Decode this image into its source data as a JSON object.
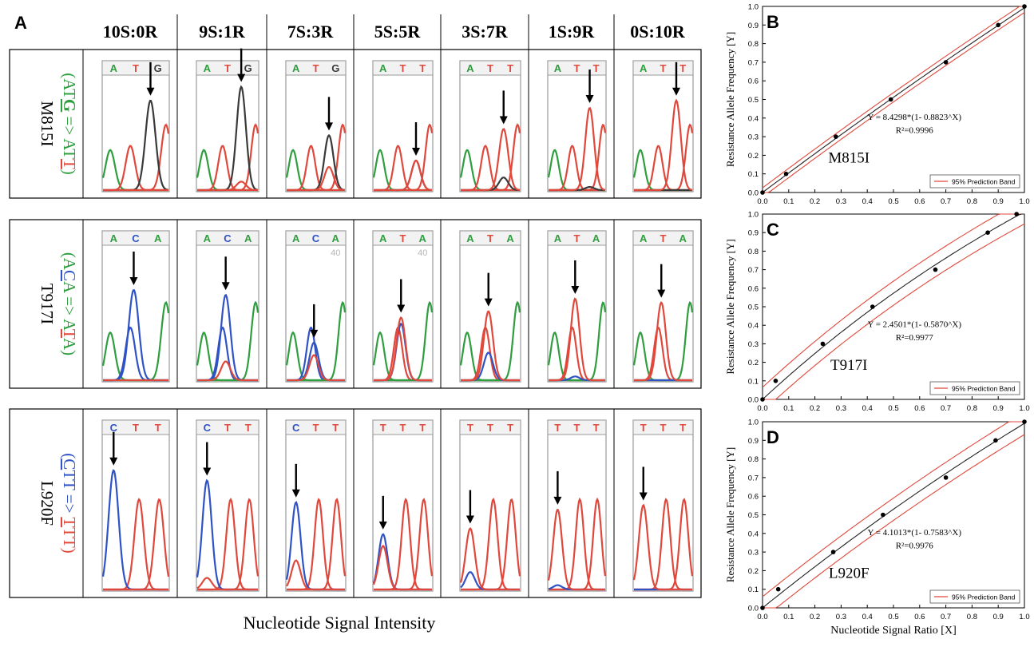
{
  "panel_letters": {
    "A": "A",
    "B": "B",
    "C": "C",
    "D": "D"
  },
  "ratio_headers": [
    "10S:0R",
    "9S:1R",
    "7S:3R",
    "5S:5R",
    "3S:7R",
    "1S:9R",
    "0S:10R"
  ],
  "bottom_label": "Nucleotide Signal Intensity",
  "base_colors": {
    "A": "#2e9e3e",
    "C": "#2f52c4",
    "G": "#3a3a3a",
    "T": "#e0483c"
  },
  "mutations": [
    {
      "name": "M815I",
      "change": {
        "parts": [
          {
            "text": "(AT",
            "color": "#2e9e3e"
          },
          {
            "text": "G",
            "color": "#2e9e3e",
            "bold": true,
            "underline": true
          },
          {
            "text": " => AT",
            "color": "#2e9e3e"
          },
          {
            "text": "T",
            "color": "#e0483c",
            "underline": true
          },
          {
            "text": ")",
            "color": "#2e9e3e"
          }
        ]
      },
      "sequences": [
        [
          "A",
          "T",
          "G"
        ],
        [
          "A",
          "T",
          "G"
        ],
        [
          "A",
          "T",
          "G"
        ],
        [
          "A",
          "T",
          "T"
        ],
        [
          "A",
          "T",
          "T"
        ],
        [
          "A",
          "T",
          "T"
        ],
        [
          "A",
          "T",
          "T"
        ]
      ],
      "position_labels": [
        "",
        "",
        "",
        "",
        "",
        "",
        ""
      ],
      "variant_peaks": {
        "ref_base": "G",
        "alt_base": "T",
        "ref": [
          0.85,
          0.98,
          0.52,
          0.28,
          0.12,
          0.03,
          0.0
        ],
        "alt": [
          0.0,
          0.08,
          0.22,
          0.28,
          0.58,
          0.78,
          0.85
        ]
      }
    },
    {
      "name": "T917I",
      "change": {
        "parts": [
          {
            "text": "(A",
            "color": "#2e9e3e"
          },
          {
            "text": "C",
            "color": "#2f52c4",
            "underline": true
          },
          {
            "text": "A => A",
            "color": "#2e9e3e"
          },
          {
            "text": "T",
            "color": "#e0483c",
            "underline": true
          },
          {
            "text": "A)",
            "color": "#2e9e3e"
          }
        ]
      },
      "sequences": [
        [
          "A",
          "C",
          "A"
        ],
        [
          "A",
          "C",
          "A"
        ],
        [
          "A",
          "C",
          "A"
        ],
        [
          "A",
          "T",
          "A"
        ],
        [
          "A",
          "T",
          "A"
        ],
        [
          "A",
          "T",
          "A"
        ],
        [
          "A",
          "T",
          "A"
        ]
      ],
      "position_labels": [
        "",
        "",
        "40",
        "40",
        "",
        "",
        ""
      ],
      "variant_peaks": {
        "ref_base": "C",
        "alt_base": "T",
        "ref": [
          0.72,
          0.68,
          0.3,
          0.45,
          0.22,
          0.03,
          0.0
        ],
        "alt": [
          0.0,
          0.15,
          0.2,
          0.5,
          0.55,
          0.65,
          0.62
        ]
      }
    },
    {
      "name": "L920F",
      "change": {
        "parts": [
          {
            "text": "(",
            "color": "#2f52c4"
          },
          {
            "text": "C",
            "color": "#2f52c4",
            "underline": true
          },
          {
            "text": "TT => ",
            "color": "#2f52c4"
          },
          {
            "text": "T",
            "color": "#e0483c",
            "underline": true
          },
          {
            "text": "TT)",
            "color": "#e0483c"
          }
        ]
      },
      "sequences": [
        [
          "C",
          "T",
          "T"
        ],
        [
          "C",
          "T",
          "T"
        ],
        [
          "C",
          "T",
          "T"
        ],
        [
          "T",
          "T",
          "T"
        ],
        [
          "T",
          "T",
          "T"
        ],
        [
          "T",
          "T",
          "T"
        ],
        [
          "T",
          "T",
          "T"
        ]
      ],
      "position_labels": [
        "",
        "",
        "",
        "",
        "",
        "",
        ""
      ],
      "variant_peaks": {
        "ref_base": "C",
        "alt_base": "T",
        "ref": [
          0.82,
          0.75,
          0.6,
          0.38,
          0.12,
          0.03,
          0.0
        ],
        "alt": [
          0.0,
          0.08,
          0.2,
          0.3,
          0.42,
          0.55,
          0.58
        ]
      }
    }
  ],
  "chart_data": [
    {
      "panel": "B",
      "type": "scatter",
      "annotation": "M815I",
      "equation": "Y = 8.4298*(1- 0.8823^X)",
      "r2": "R²=0.9996",
      "legend": "95% Prediction Band",
      "ylabel": "Resistance Allele Frequency [Y]",
      "xlabel": "",
      "xlim": [
        0,
        1
      ],
      "ylim": [
        0,
        1
      ],
      "xticks": [
        "0.0",
        "0.1",
        "0.2",
        "0.3",
        "0.4",
        "0.5",
        "0.6",
        "0.7",
        "0.8",
        "0.9",
        "1.0"
      ],
      "yticks": [
        "0.0",
        "0.1",
        "0.2",
        "0.3",
        "0.4",
        "0.5",
        "0.6",
        "0.7",
        "0.8",
        "0.9",
        "1.0"
      ],
      "fit": {
        "a": 8.4298,
        "b": 0.8823
      },
      "band_half_width": 0.025,
      "points": [
        {
          "x": 0,
          "y": 0
        },
        {
          "x": 0.09,
          "y": 0.1
        },
        {
          "x": 0.28,
          "y": 0.3
        },
        {
          "x": 0.49,
          "y": 0.5
        },
        {
          "x": 0.7,
          "y": 0.7
        },
        {
          "x": 0.9,
          "y": 0.9
        },
        {
          "x": 1.0,
          "y": 1.0
        }
      ]
    },
    {
      "panel": "C",
      "type": "scatter",
      "annotation": "T917I",
      "equation": "Y = 2.4501*(1- 0.5870^X)",
      "r2": "R²=0.9977",
      "legend": "95% Prediction Band",
      "ylabel": "Resistance Allele Frequency [Y]",
      "xlabel": "",
      "xlim": [
        0,
        1
      ],
      "ylim": [
        0,
        1
      ],
      "xticks": [
        "0.0",
        "0.1",
        "0.2",
        "0.3",
        "0.4",
        "0.5",
        "0.6",
        "0.7",
        "0.8",
        "0.9",
        "1.0"
      ],
      "yticks": [
        "0.0",
        "0.1",
        "0.2",
        "0.3",
        "0.4",
        "0.5",
        "0.6",
        "0.7",
        "0.8",
        "0.9",
        "1.0"
      ],
      "fit": {
        "a": 2.4501,
        "b": 0.587
      },
      "band_half_width": 0.065,
      "points": [
        {
          "x": 0,
          "y": 0
        },
        {
          "x": 0.05,
          "y": 0.1
        },
        {
          "x": 0.23,
          "y": 0.3
        },
        {
          "x": 0.42,
          "y": 0.5
        },
        {
          "x": 0.66,
          "y": 0.7
        },
        {
          "x": 0.86,
          "y": 0.9
        },
        {
          "x": 0.97,
          "y": 1.0
        }
      ]
    },
    {
      "panel": "D",
      "type": "scatter",
      "annotation": "L920F",
      "equation": "Y = 4.1013*(1- 0.7583^X)",
      "r2": "R²=0.9976",
      "legend": "95% Prediction Band",
      "ylabel": "Resistance Allele Frequency [Y]",
      "xlabel": "Nucleotide Signal Ratio [X]",
      "xlim": [
        0,
        1
      ],
      "ylim": [
        0,
        1
      ],
      "xticks": [
        "0.0",
        "0.1",
        "0.2",
        "0.3",
        "0.4",
        "0.5",
        "0.6",
        "0.7",
        "0.8",
        "0.9",
        "1.0"
      ],
      "yticks": [
        "0.0",
        "0.1",
        "0.2",
        "0.3",
        "0.4",
        "0.5",
        "0.6",
        "0.7",
        "0.8",
        "0.9",
        "1.0"
      ],
      "fit": {
        "a": 4.1013,
        "b": 0.7583
      },
      "band_half_width": 0.06,
      "points": [
        {
          "x": 0,
          "y": 0
        },
        {
          "x": 0.06,
          "y": 0.1
        },
        {
          "x": 0.27,
          "y": 0.3
        },
        {
          "x": 0.46,
          "y": 0.5
        },
        {
          "x": 0.7,
          "y": 0.7
        },
        {
          "x": 0.89,
          "y": 0.9
        },
        {
          "x": 1.0,
          "y": 1.0
        }
      ]
    }
  ]
}
